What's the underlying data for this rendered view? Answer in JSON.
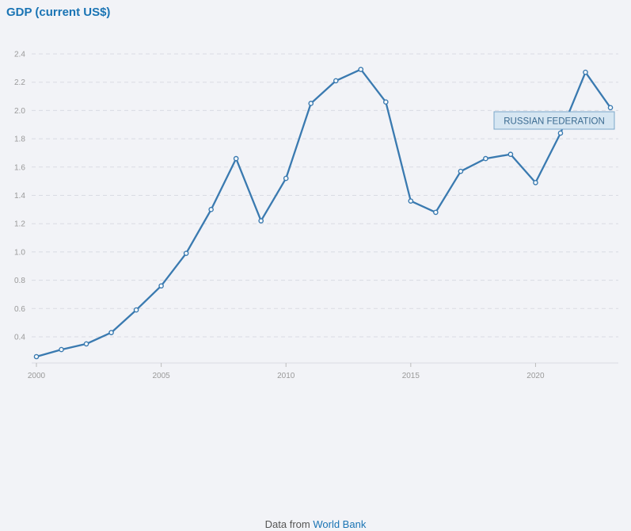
{
  "title": "GDP (current US$)",
  "footer": {
    "prefix": "Data from ",
    "link": "World Bank"
  },
  "colors": {
    "line": "#3a7ab0",
    "title": "#1a74b4",
    "grid": "#d9dbe3",
    "tick": "#999999",
    "label_bg": "#d6e6f2",
    "label_border": "#7aa7c9",
    "label_text": "#3a6a90"
  },
  "chart_data": {
    "type": "line",
    "title": "GDP (current US$)",
    "xlabel": "",
    "ylabel": "",
    "xlim": [
      2000,
      2023
    ],
    "ylim": [
      0.2,
      2.5
    ],
    "y_ticks": [
      "0.4",
      "0.6",
      "0.8",
      "1.0",
      "1.2",
      "1.4",
      "1.6",
      "1.8",
      "2.0",
      "2.2",
      "2.4"
    ],
    "x_ticks": [
      "2000",
      "2005",
      "2010",
      "2015",
      "2020"
    ],
    "grid": true,
    "series": [
      {
        "name": "RUSSIAN FEDERATION",
        "x": [
          2000,
          2001,
          2002,
          2003,
          2004,
          2005,
          2006,
          2007,
          2008,
          2009,
          2010,
          2011,
          2012,
          2013,
          2014,
          2015,
          2016,
          2017,
          2018,
          2019,
          2020,
          2021,
          2022,
          2023
        ],
        "y": [
          0.26,
          0.31,
          0.35,
          0.43,
          0.59,
          0.76,
          0.99,
          1.3,
          1.66,
          1.22,
          1.52,
          2.05,
          2.21,
          2.29,
          2.06,
          1.36,
          1.28,
          1.57,
          1.66,
          1.69,
          1.49,
          1.84,
          2.27,
          2.02
        ]
      }
    ]
  }
}
